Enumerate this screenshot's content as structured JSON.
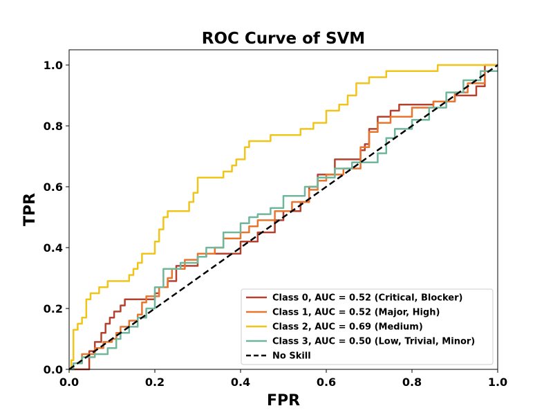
{
  "chart_data": {
    "type": "line",
    "title": "ROC Curve of SVM",
    "xlabel": "FPR",
    "ylabel": "TPR",
    "xlim": [
      0.0,
      1.0
    ],
    "ylim": [
      0.0,
      1.05
    ],
    "xticks": [
      "0.0",
      "0.2",
      "0.4",
      "0.6",
      "0.8",
      "1.0"
    ],
    "yticks": [
      "0.0",
      "0.2",
      "0.4",
      "0.6",
      "0.8",
      "1.0"
    ],
    "grid": false,
    "legend_position": "lower-right",
    "series": [
      {
        "name": "Class 0, AUC = 0.52 (Critical, Blocker)",
        "color": "#b5402e",
        "step": true,
        "x": [
          0,
          0.047,
          0.047,
          0.06,
          0.06,
          0.075,
          0.075,
          0.085,
          0.085,
          0.095,
          0.095,
          0.105,
          0.105,
          0.12,
          0.12,
          0.13,
          0.13,
          0.14,
          0.14,
          0.2,
          0.2,
          0.21,
          0.21,
          0.23,
          0.23,
          0.25,
          0.25,
          0.3,
          0.3,
          0.32,
          0.32,
          0.4,
          0.4,
          0.44,
          0.44,
          0.48,
          0.48,
          0.5,
          0.5,
          0.54,
          0.54,
          0.56,
          0.56,
          0.58,
          0.58,
          0.62,
          0.62,
          0.68,
          0.68,
          0.69,
          0.69,
          0.7,
          0.7,
          0.72,
          0.72,
          0.75,
          0.75,
          0.77,
          0.77,
          0.85,
          0.85,
          0.9,
          0.9,
          0.95,
          0.95,
          0.97,
          0.97,
          1.0
        ],
        "y": [
          0,
          0,
          0.06,
          0.06,
          0.09,
          0.09,
          0.12,
          0.12,
          0.15,
          0.15,
          0.17,
          0.17,
          0.19,
          0.19,
          0.21,
          0.21,
          0.23,
          0.23,
          0.23,
          0.23,
          0.25,
          0.25,
          0.27,
          0.27,
          0.29,
          0.29,
          0.34,
          0.34,
          0.37,
          0.37,
          0.38,
          0.38,
          0.42,
          0.42,
          0.45,
          0.45,
          0.49,
          0.49,
          0.52,
          0.52,
          0.55,
          0.55,
          0.6,
          0.6,
          0.64,
          0.64,
          0.69,
          0.69,
          0.72,
          0.72,
          0.74,
          0.74,
          0.79,
          0.79,
          0.83,
          0.83,
          0.85,
          0.85,
          0.87,
          0.87,
          0.88,
          0.88,
          0.9,
          0.9,
          0.93,
          0.93,
          1.0,
          1.0
        ]
      },
      {
        "name": "Class 1, AUC = 0.52 (Major, High)",
        "color": "#e8752e",
        "step": true,
        "x": [
          0,
          0.01,
          0.01,
          0.03,
          0.03,
          0.06,
          0.06,
          0.08,
          0.08,
          0.1,
          0.1,
          0.11,
          0.11,
          0.12,
          0.12,
          0.14,
          0.14,
          0.16,
          0.16,
          0.17,
          0.17,
          0.18,
          0.18,
          0.21,
          0.21,
          0.23,
          0.23,
          0.24,
          0.24,
          0.27,
          0.27,
          0.3,
          0.3,
          0.34,
          0.34,
          0.36,
          0.36,
          0.4,
          0.4,
          0.42,
          0.42,
          0.44,
          0.44,
          0.48,
          0.48,
          0.52,
          0.52,
          0.56,
          0.56,
          0.58,
          0.58,
          0.6,
          0.6,
          0.64,
          0.64,
          0.68,
          0.68,
          0.7,
          0.7,
          0.72,
          0.72,
          0.75,
          0.75,
          0.8,
          0.8,
          0.85,
          0.85,
          0.9,
          0.9,
          0.93,
          0.93,
          0.97,
          0.97,
          1.0
        ],
        "y": [
          0,
          0,
          0.02,
          0.02,
          0.05,
          0.05,
          0.07,
          0.07,
          0.09,
          0.09,
          0.1,
          0.1,
          0.12,
          0.12,
          0.14,
          0.14,
          0.16,
          0.16,
          0.18,
          0.18,
          0.22,
          0.22,
          0.24,
          0.24,
          0.27,
          0.27,
          0.3,
          0.3,
          0.33,
          0.33,
          0.36,
          0.36,
          0.38,
          0.38,
          0.4,
          0.4,
          0.43,
          0.43,
          0.45,
          0.45,
          0.47,
          0.47,
          0.49,
          0.49,
          0.52,
          0.52,
          0.55,
          0.55,
          0.59,
          0.59,
          0.62,
          0.62,
          0.64,
          0.64,
          0.66,
          0.66,
          0.73,
          0.73,
          0.78,
          0.78,
          0.81,
          0.81,
          0.83,
          0.83,
          0.86,
          0.86,
          0.88,
          0.88,
          0.91,
          0.91,
          0.94,
          0.94,
          0.98,
          0.98
        ]
      },
      {
        "name": "Class 2, AUC = 0.69 (Medium)",
        "color": "#f0c419",
        "step": true,
        "x": [
          0,
          0.005,
          0.005,
          0.01,
          0.01,
          0.02,
          0.02,
          0.03,
          0.03,
          0.04,
          0.04,
          0.05,
          0.05,
          0.07,
          0.07,
          0.09,
          0.09,
          0.14,
          0.14,
          0.15,
          0.15,
          0.16,
          0.16,
          0.17,
          0.17,
          0.2,
          0.2,
          0.21,
          0.21,
          0.22,
          0.22,
          0.23,
          0.23,
          0.28,
          0.28,
          0.29,
          0.29,
          0.3,
          0.3,
          0.36,
          0.36,
          0.38,
          0.38,
          0.39,
          0.39,
          0.41,
          0.41,
          0.42,
          0.42,
          0.47,
          0.47,
          0.54,
          0.54,
          0.57,
          0.57,
          0.6,
          0.6,
          0.63,
          0.63,
          0.65,
          0.65,
          0.67,
          0.67,
          0.7,
          0.7,
          0.74,
          0.74,
          0.8,
          0.8,
          0.86,
          0.86,
          0.92,
          0.92,
          0.96,
          0.96,
          1.0
        ],
        "y": [
          0,
          0,
          0.03,
          0.03,
          0.13,
          0.13,
          0.15,
          0.15,
          0.17,
          0.17,
          0.23,
          0.23,
          0.25,
          0.25,
          0.27,
          0.27,
          0.29,
          0.29,
          0.31,
          0.31,
          0.33,
          0.33,
          0.35,
          0.35,
          0.38,
          0.38,
          0.42,
          0.42,
          0.46,
          0.46,
          0.5,
          0.5,
          0.52,
          0.52,
          0.55,
          0.55,
          0.58,
          0.58,
          0.63,
          0.63,
          0.65,
          0.65,
          0.67,
          0.67,
          0.69,
          0.69,
          0.73,
          0.73,
          0.75,
          0.75,
          0.77,
          0.77,
          0.79,
          0.79,
          0.81,
          0.81,
          0.85,
          0.85,
          0.87,
          0.87,
          0.9,
          0.9,
          0.94,
          0.94,
          0.96,
          0.96,
          0.98,
          0.98,
          0.98,
          0.98,
          1.0,
          1.0,
          1.0,
          1.0,
          1.0,
          1.0
        ]
      },
      {
        "name": "Class 3, AUC = 0.50 (Low, Trivial, Minor)",
        "color": "#6fb69a",
        "step": true,
        "x": [
          0,
          0.01,
          0.01,
          0.03,
          0.03,
          0.06,
          0.06,
          0.09,
          0.09,
          0.11,
          0.11,
          0.12,
          0.12,
          0.14,
          0.14,
          0.16,
          0.16,
          0.18,
          0.18,
          0.2,
          0.2,
          0.22,
          0.22,
          0.26,
          0.26,
          0.3,
          0.3,
          0.32,
          0.32,
          0.36,
          0.36,
          0.4,
          0.4,
          0.42,
          0.42,
          0.44,
          0.44,
          0.47,
          0.47,
          0.5,
          0.5,
          0.55,
          0.55,
          0.58,
          0.58,
          0.62,
          0.62,
          0.66,
          0.66,
          0.72,
          0.72,
          0.74,
          0.74,
          0.76,
          0.76,
          0.8,
          0.8,
          0.84,
          0.84,
          0.88,
          0.88,
          0.92,
          0.92,
          0.96,
          0.96,
          1.0
        ],
        "y": [
          0,
          0,
          0.02,
          0.02,
          0.04,
          0.04,
          0.05,
          0.05,
          0.07,
          0.07,
          0.1,
          0.1,
          0.12,
          0.12,
          0.14,
          0.14,
          0.17,
          0.17,
          0.2,
          0.2,
          0.27,
          0.27,
          0.33,
          0.33,
          0.35,
          0.35,
          0.37,
          0.37,
          0.4,
          0.4,
          0.45,
          0.45,
          0.48,
          0.48,
          0.5,
          0.5,
          0.51,
          0.51,
          0.53,
          0.53,
          0.57,
          0.57,
          0.6,
          0.6,
          0.63,
          0.63,
          0.66,
          0.66,
          0.68,
          0.68,
          0.71,
          0.71,
          0.76,
          0.76,
          0.79,
          0.79,
          0.82,
          0.82,
          0.86,
          0.86,
          0.91,
          0.91,
          0.95,
          0.95,
          0.98,
          0.98
        ]
      },
      {
        "name": "No Skill",
        "color": "#000000",
        "dashed": true,
        "x": [
          0,
          1
        ],
        "y": [
          0,
          1
        ]
      }
    ]
  }
}
